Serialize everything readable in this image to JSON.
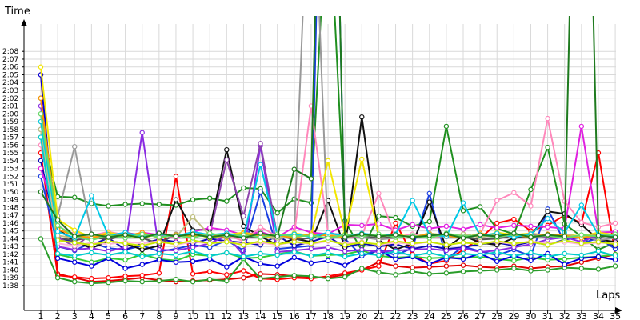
{
  "chart_data": {
    "type": "line",
    "ylabel": "Time",
    "xlabel": "Laps",
    "x": [
      1,
      2,
      3,
      4,
      5,
      6,
      7,
      8,
      9,
      10,
      11,
      12,
      13,
      14,
      15,
      16,
      17,
      18,
      19,
      20,
      21,
      22,
      23,
      24,
      25,
      26,
      27,
      28,
      29,
      30,
      31,
      32,
      33,
      34,
      35
    ],
    "xlim": [
      1,
      35
    ],
    "ylim_seconds": [
      96,
      129
    ],
    "ytick_labels": [
      "1:38",
      "1:39",
      "1:40",
      "1:41",
      "1:42",
      "1:43",
      "1:44",
      "1:45",
      "1:46",
      "1:47",
      "1:48",
      "1:49",
      "1:50",
      "1:51",
      "1:52",
      "1:53",
      "1:54",
      "1:55",
      "1:56",
      "1:57",
      "1:58",
      "1:59",
      "2:00",
      "2:01",
      "2:02",
      "2:03",
      "2:04",
      "2:05",
      "2:06",
      "2:07",
      "2:08"
    ],
    "grid": true,
    "series": [
      {
        "color": "#e00000",
        "values": [
          125,
          99.5,
          99,
          98.5,
          98.6,
          98.8,
          99,
          98.7,
          98.5,
          98.6,
          98.7,
          98.8,
          99,
          99.5,
          99.4,
          99.2,
          99.1,
          99,
          99.4,
          100,
          101,
          100.5,
          100.3,
          100.4,
          100.5,
          100.6,
          100.4,
          100.3,
          100.5,
          100.2,
          100.4,
          100.5,
          101,
          101.5,
          102
        ]
      },
      {
        "color": "#ff0000",
        "values": [
          115,
          99.3,
          99.1,
          98.9,
          99,
          99.2,
          99.3,
          99.6,
          112,
          99.5,
          99.8,
          99.4,
          99.9,
          98.9,
          98.8,
          99,
          98.9,
          99.2,
          99.6,
          100,
          100.5,
          106,
          102,
          100.8,
          101.2,
          102.6,
          104,
          106,
          106.5,
          105,
          105.7,
          107,
          106,
          115,
          102
        ]
      },
      {
        "color": "#2a9d2a",
        "values": [
          104,
          99,
          98.5,
          98.3,
          98.4,
          98.6,
          98.5,
          98.6,
          98.8,
          98.5,
          98.8,
          98.6,
          101.3,
          98.9,
          99.1,
          99.3,
          99.2,
          98.9,
          99.1,
          100.2,
          99.7,
          99.4,
          99.8,
          99.5,
          99.6,
          99.8,
          99.9,
          100,
          100.2,
          99.9,
          100,
          100.3,
          100.2,
          100.1,
          100.5
        ]
      },
      {
        "color": "#33cc33",
        "values": [
          117,
          102,
          101.5,
          101,
          101.5,
          101.3,
          102,
          101.4,
          101.2,
          102,
          101.8,
          102.2,
          101.5,
          101.6,
          102,
          102.4,
          101.8,
          101.9,
          102,
          102.5,
          101.8,
          101.6,
          101.7,
          101.5,
          101.6,
          101.5,
          101.7,
          101.4,
          101.2,
          101.6,
          101.3,
          101.4,
          101.6,
          101.7,
          102
        ]
      },
      {
        "color": "#1f8f1f",
        "values": [
          118,
          109.4,
          109.3,
          108.5,
          108.2,
          108.4,
          108.5,
          108.4,
          108.3,
          109,
          109.2,
          108.8,
          110.5,
          110.4,
          107.3,
          109.1,
          108.6,
          150,
          106.3,
          102.5,
          106.9,
          106.7,
          105.6,
          106.2,
          118.4,
          107.6,
          108.1,
          105.3,
          104.6,
          110.3,
          115.7,
          105.9,
          104.3,
          102.6,
          103.5
        ]
      },
      {
        "color": "#0000dd",
        "values": [
          125,
          101.5,
          101,
          100.5,
          101.5,
          100.2,
          100.7,
          101.3,
          101,
          101.1,
          101.4,
          100.4,
          101.7,
          100.8,
          100.5,
          101.6,
          100.9,
          101.2,
          100.6,
          101.8,
          102.5,
          101.4,
          101.7,
          100.8,
          101.6,
          101.4,
          102.1,
          101.1,
          101.8,
          101.2,
          102.1,
          100.7,
          101.5,
          101.7,
          101.3
        ]
      },
      {
        "color": "#1a3fe0",
        "values": [
          112,
          103,
          102.5,
          103.5,
          102.8,
          102.6,
          103.1,
          102.4,
          102.7,
          103.2,
          102.9,
          103.8,
          102.5,
          110,
          102.7,
          102.9,
          103.1,
          200,
          104,
          101.8,
          102.6,
          101.9,
          102.8,
          109.8,
          101.4,
          103,
          102.4,
          101.9,
          102.6,
          101.8,
          107.8,
          103.6,
          103.4,
          104.1,
          102.7
        ]
      },
      {
        "color": "#0a0ab5",
        "values": [
          114,
          104.2,
          103.5,
          103.2,
          104.1,
          102.6,
          103.4,
          103.9,
          103.6,
          103.4,
          104,
          103.7,
          103.5,
          103.2,
          104.4,
          103.1,
          103.6,
          104.3,
          102.9,
          103.4,
          103,
          103.3,
          102.7,
          103.1,
          102.7,
          102.9,
          103.3,
          103.5,
          103.1,
          103.6,
          103.2,
          103.9,
          104.2,
          103.8,
          103.1
        ]
      },
      {
        "color": "#111111",
        "values": [
          122,
          105.3,
          103.6,
          102.8,
          103.7,
          103.4,
          102.6,
          103.1,
          109,
          105.1,
          105.2,
          115.4,
          105.6,
          104.3,
          103.2,
          104,
          103.6,
          108.9,
          102.9,
          119.6,
          103.8,
          102.6,
          103.4,
          108.7,
          102.8,
          104.4,
          103.5,
          103.2,
          104.1,
          104.3,
          107.5,
          107.2,
          105.8,
          103.9,
          103.6
        ]
      },
      {
        "color": "#555555",
        "values": [
          120,
          104.1,
          103.8,
          104.2,
          103.9,
          104.5,
          104.1,
          103.4,
          104.6,
          104.2,
          104.6,
          104.3,
          104.3,
          104.2,
          104.5,
          103.9,
          104.1,
          104.7,
          104.2,
          104.3,
          104.1,
          104.2,
          104.4,
          104.1,
          104.5,
          104.2,
          103.9,
          104,
          104.4,
          104.1,
          104.3,
          104.1,
          104.3,
          104.2,
          104.5
        ]
      },
      {
        "color": "#999999",
        "values": [
          119,
          106.9,
          115.8,
          104.6,
          104.3,
          104.5,
          104.7,
          104.2,
          104.6,
          104.3,
          104.4,
          104.1,
          104.8,
          104.5,
          103.8,
          104.7,
          160,
          103.9,
          104.5,
          104.2,
          103.9,
          104.1,
          104.5,
          104.2,
          104.3,
          104.1,
          104.4,
          104.2,
          104.5,
          104.3,
          104.1,
          104.2,
          104.4,
          103.8,
          104.1
        ]
      },
      {
        "color": "#8a2be2",
        "values": [
          121,
          103,
          102.6,
          102.8,
          102.4,
          102.9,
          117.6,
          102.6,
          102.5,
          102.9,
          103.4,
          104.4,
          101.9,
          115.9,
          102.3,
          102.5,
          102.7,
          102.9,
          102.4,
          102.6,
          102.3,
          102.5,
          102.6,
          102.7,
          102.5,
          102.8,
          102.3,
          102.5,
          102.9,
          103.3,
          103.9,
          104.2,
          103.6,
          104.5,
          104.1
        ]
      },
      {
        "color": "#8e44ad",
        "values": [
          118,
          104.2,
          103,
          104.6,
          104.1,
          104.8,
          104.4,
          104.6,
          104.2,
          104.7,
          104.5,
          114.1,
          106.9,
          116.2,
          104.3,
          104.6,
          104.4,
          104.7,
          104.5,
          104.6,
          104.3,
          104.5,
          104.2,
          104.7,
          104.3,
          104.6,
          104.2,
          104.5,
          104.3,
          104.6,
          104.2,
          104.5,
          104.3,
          104.7,
          104.2
        ]
      },
      {
        "color": "#e020e0",
        "values": [
          113,
          106.4,
          104.2,
          103.9,
          104.6,
          104.2,
          104.8,
          104.5,
          104.1,
          104.9,
          105.4,
          105.1,
          104.5,
          104.9,
          104.2,
          105.5,
          104.8,
          104.6,
          105.8,
          105.7,
          105.9,
          105.1,
          105.8,
          105.3,
          105.6,
          105.2,
          105.8,
          105.4,
          105.7,
          105.6,
          105.5,
          105.3,
          118.4,
          104.8,
          104.9
        ]
      },
      {
        "color": "#ff88bb",
        "values": [
          116,
          105.1,
          104.7,
          104.4,
          104.9,
          104.5,
          104.2,
          104.6,
          104.3,
          104.8,
          104.1,
          104.5,
          103.7,
          105.5,
          104.3,
          104.6,
          121,
          104.8,
          104.2,
          104.4,
          109.8,
          104.2,
          104.6,
          104.1,
          104.5,
          104.2,
          104.6,
          108.9,
          109.9,
          108.2,
          119.4,
          108.8,
          106.1,
          105.5,
          106
        ]
      },
      {
        "color": "#ffb6d9",
        "values": [
          117,
          103.4,
          103.1,
          103.5,
          103.3,
          103.6,
          103.4,
          103.7,
          103.2,
          103.6,
          103.4,
          103.7,
          103.3,
          103.5,
          103.2,
          103.6,
          103.3,
          103.7,
          103.4,
          103.6,
          103.2,
          103.5,
          103.3,
          103.6,
          103.2,
          103.5,
          103.4,
          103.6,
          103.3,
          103.7,
          103.4,
          103.6,
          103.3,
          103.5,
          103.4
        ]
      },
      {
        "color": "#f2e600",
        "values": [
          126,
          106.5,
          105.1,
          104.2,
          104.8,
          104.4,
          104.1,
          104.6,
          104.3,
          104.7,
          104.1,
          104.5,
          104.8,
          104.4,
          104.1,
          104.7,
          104.4,
          114,
          104.6,
          114.2,
          104.3,
          104.6,
          104.2,
          104.7,
          104.4,
          104.6,
          104.2,
          104.8,
          104.5,
          104.7,
          104.4,
          104.6,
          104.3,
          104.8,
          104.5
        ]
      },
      {
        "color": "#c8e800",
        "values": [
          119,
          103.8,
          103.5,
          103.2,
          103.7,
          103.4,
          103.1,
          103.6,
          103.3,
          103.8,
          103.4,
          103.6,
          103.2,
          103.7,
          103.3,
          103.6,
          103.4,
          103.8,
          103.2,
          103.5,
          103.3,
          103.7,
          103.4,
          103.6,
          103.2,
          103.5,
          103.3,
          103.7,
          103.4,
          103.6,
          103.2,
          103.8,
          103.4,
          103.6,
          103.3
        ]
      },
      {
        "color": "#c0c080",
        "values": [
          118,
          104.4,
          104.1,
          104.5,
          104.2,
          104.7,
          104.3,
          104.6,
          104.2,
          106.8,
          104.4,
          104.7,
          104.3,
          104.6,
          104.1,
          104.5,
          104.3,
          104.7,
          104.2,
          104.6,
          104.3,
          104.5,
          104.2,
          104.7,
          104.4,
          104.6,
          104.2,
          104.5,
          104.3,
          104.7,
          104.4,
          104.6,
          104.2,
          104.5,
          104.4
        ]
      },
      {
        "color": "#ff9900",
        "values": [
          122,
          105.2,
          104.4,
          104.1,
          104.6,
          104.3,
          104.8,
          104.1,
          104.5,
          104.3,
          104.6,
          104.2,
          104.7,
          104.3,
          104.5,
          104.1,
          104.6,
          104.4,
          104.2,
          104.7,
          104.3,
          104.5,
          104.2,
          104.6,
          104.4,
          104.1,
          104.7,
          104.3,
          104.5,
          104.2,
          104.6,
          104.4,
          104.1,
          104.5,
          104.3
        ]
      },
      {
        "color": "#00c8e6",
        "values": [
          119,
          104.9,
          104.1,
          109.5,
          104.4,
          104.8,
          104.2,
          104.6,
          104.3,
          104.9,
          104.5,
          104.7,
          104.2,
          113.5,
          104.4,
          104.6,
          104.2,
          104.8,
          104.3,
          104.7,
          104.4,
          104.6,
          108.9,
          104.5,
          104.3,
          108.6,
          104.4,
          104.7,
          104.2,
          104.6,
          106.6,
          104.8,
          108.3,
          104.5,
          104.3
        ]
      },
      {
        "color": "#00cccc",
        "values": [
          117,
          102.1,
          101.8,
          102.2,
          101.9,
          102.3,
          101.7,
          102.1,
          101.9,
          102.4,
          101.8,
          102.2,
          101.7,
          102.1,
          101.9,
          102.3,
          101.8,
          102.2,
          101.7,
          102.1,
          101.9,
          102.4,
          101.8,
          102.2,
          101.7,
          102.1,
          101.9,
          102.3,
          101.8,
          102.2,
          101.7,
          102.1,
          101.9,
          102.4,
          101.8
        ]
      },
      {
        "color": "#66dd66",
        "values": [
          120,
          105.7,
          104.3,
          103.8,
          104.5,
          104.1,
          104.6,
          104.2,
          104.4,
          104.1,
          104.7,
          104.3,
          104.5,
          104.2,
          104.6,
          104.3,
          104.4,
          104.1,
          104.5,
          104.3,
          104.6,
          104.2,
          104.4,
          104.1,
          104.7,
          104.3,
          104.5,
          104.2,
          104.6,
          104.3,
          104.4,
          104.1,
          104.5,
          104.3,
          104.6
        ]
      },
      {
        "color": "#1e7a1e",
        "values": [
          110,
          106.4,
          104.3,
          104.6,
          104.2,
          104.5,
          104.1,
          104.7,
          104.3,
          104.6,
          104.2,
          104.5,
          104.1,
          104.7,
          104.3,
          112.9,
          111.7,
          200,
          104.2,
          104.6,
          104.3,
          104.5,
          104.2,
          104.4,
          104.6,
          104.1,
          104.5,
          104.3,
          104.7,
          104.2,
          104.5,
          104.3,
          200,
          104.4,
          104.2
        ]
      }
    ]
  }
}
